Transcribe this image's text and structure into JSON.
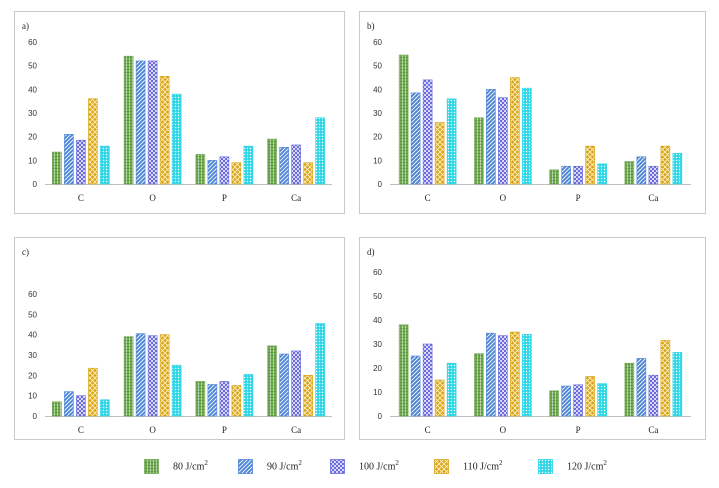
{
  "legend": {
    "items": [
      {
        "label": "80 J/cm",
        "sup": "2"
      },
      {
        "label": "90 J/cm",
        "sup": "2"
      },
      {
        "label": "100 J/cm",
        "sup": "2"
      },
      {
        "label": "110 J/cm",
        "sup": "2"
      },
      {
        "label": "120 J/cm",
        "sup": "2"
      }
    ]
  },
  "series_colors": [
    "#6ea84f",
    "#4f87d6",
    "#6b6bde",
    "#d9a51c",
    "#2ed6e6"
  ],
  "chart_data": [
    {
      "type": "bar",
      "panel_label": "a)",
      "categories": [
        "C",
        "O",
        "P",
        "Ca"
      ],
      "ylim": [
        0,
        60
      ],
      "yticks": [
        0,
        10,
        20,
        30,
        40,
        50,
        60
      ],
      "grid": false,
      "series": [
        {
          "values": [
            13.5,
            54,
            12.5,
            19
          ]
        },
        {
          "values": [
            21,
            52,
            10,
            15.5
          ]
        },
        {
          "values": [
            18.5,
            52,
            11.5,
            16.5
          ]
        },
        {
          "values": [
            36,
            45.5,
            9,
            9
          ]
        },
        {
          "values": [
            16,
            38,
            16,
            28
          ]
        }
      ]
    },
    {
      "type": "bar",
      "panel_label": "b)",
      "categories": [
        "C",
        "O",
        "P",
        "Ca"
      ],
      "ylim": [
        0,
        60
      ],
      "yticks": [
        0,
        10,
        20,
        30,
        40,
        50,
        60
      ],
      "grid": false,
      "series": [
        {
          "values": [
            54.5,
            28,
            6,
            9.5
          ]
        },
        {
          "values": [
            38.5,
            40,
            7.5,
            11.5
          ]
        },
        {
          "values": [
            44,
            36.5,
            7.5,
            7.5
          ]
        },
        {
          "values": [
            26,
            45,
            16,
            16
          ]
        },
        {
          "values": [
            36,
            40.5,
            8.5,
            13
          ]
        }
      ]
    },
    {
      "type": "bar",
      "panel_label": "c)",
      "categories": [
        "C",
        "O",
        "P",
        "Ca"
      ],
      "ylim": [
        0,
        60
      ],
      "yticks": [
        0,
        10,
        20,
        30,
        40,
        50,
        60
      ],
      "grid": false,
      "series": [
        {
          "values": [
            7,
            39,
            17,
            34.5
          ]
        },
        {
          "values": [
            12,
            40.5,
            15.5,
            30.5
          ]
        },
        {
          "values": [
            10,
            39.5,
            17,
            32
          ]
        },
        {
          "values": [
            23.5,
            40,
            15,
            20
          ]
        },
        {
          "values": [
            8,
            25,
            20.5,
            45.5
          ]
        }
      ]
    },
    {
      "type": "bar",
      "panel_label": "d)",
      "categories": [
        "C",
        "O",
        "P",
        "Ca"
      ],
      "ylim": [
        0,
        60
      ],
      "yticks": [
        0,
        10,
        20,
        30,
        40,
        50,
        60
      ],
      "grid": false,
      "series": [
        {
          "values": [
            38,
            26,
            10.5,
            22
          ]
        },
        {
          "values": [
            25,
            34.5,
            12.5,
            24
          ]
        },
        {
          "values": [
            30,
            33.5,
            13,
            17
          ]
        },
        {
          "values": [
            15,
            35,
            16.5,
            31.5
          ]
        },
        {
          "values": [
            22,
            34,
            13.5,
            26.5
          ]
        }
      ]
    }
  ]
}
